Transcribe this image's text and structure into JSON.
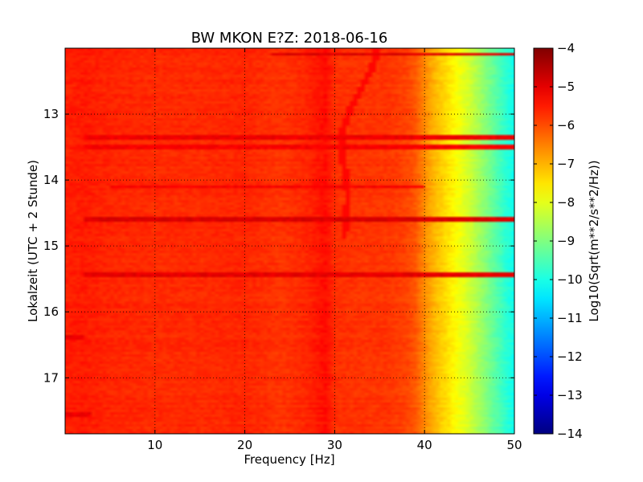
{
  "chart_data": {
    "type": "heatmap",
    "title": "BW MKON E?Z: 2018-06-16",
    "xlabel": "Frequency [Hz]",
    "ylabel": "Lokalzeit (UTC + 2 Stunde)",
    "xlim": [
      0,
      50
    ],
    "ylim_top": 12.0,
    "ylim_bottom": 17.85,
    "y_inverted": true,
    "x_ticks": [
      10,
      20,
      30,
      40,
      50
    ],
    "y_ticks": [
      13,
      14,
      15,
      16,
      17
    ],
    "grid": true,
    "colormap": "jet",
    "colorbar": {
      "label": "Log10(Sqrt(m**2/s**2/Hz))",
      "min": -14,
      "max": -4,
      "ticks": [
        -4,
        -5,
        -6,
        -7,
        -8,
        -9,
        -10,
        -11,
        -12,
        -13,
        -14
      ]
    },
    "spectrum_profile": {
      "freq_hz": [
        0,
        2,
        5,
        10,
        15,
        20,
        24,
        27,
        29,
        30,
        33,
        36,
        38,
        39,
        40,
        41,
        42,
        43,
        44,
        45,
        46,
        47,
        48,
        49,
        50
      ],
      "log10_psd": [
        -5.55,
        -5.5,
        -5.6,
        -5.65,
        -5.65,
        -5.6,
        -5.75,
        -5.6,
        -5.35,
        -5.7,
        -5.75,
        -5.75,
        -5.9,
        -6.1,
        -6.6,
        -7.0,
        -7.3,
        -7.6,
        -7.9,
        -8.2,
        -8.6,
        -9.0,
        -9.4,
        -9.8,
        -10.1
      ]
    },
    "time_bands": [
      {
        "time_h": 12.09,
        "f_from": 23,
        "f_to": 50,
        "log10_psd": -4.9
      },
      {
        "time_h": 13.35,
        "f_from": 2,
        "f_to": 50,
        "log10_psd": -5.1
      },
      {
        "time_h": 13.5,
        "f_from": 2,
        "f_to": 50,
        "log10_psd": -5.2
      },
      {
        "time_h": 14.1,
        "f_from": 5,
        "f_to": 40,
        "log10_psd": -5.2
      },
      {
        "time_h": 14.6,
        "f_from": 2,
        "f_to": 50,
        "log10_psd": -4.9
      },
      {
        "time_h": 15.45,
        "f_from": 2,
        "f_to": 50,
        "log10_psd": -5.0
      },
      {
        "time_h": 16.4,
        "f_from": 0,
        "f_to": 2,
        "log10_psd": -5.1
      },
      {
        "time_h": 17.55,
        "f_from": 0,
        "f_to": 3,
        "log10_psd": -5.1
      }
    ],
    "drifting_line": {
      "time_h": [
        12.0,
        12.3,
        12.6,
        12.9,
        13.2,
        13.6,
        14.0,
        14.3,
        14.6,
        14.9
      ],
      "freq_hz": [
        34.7,
        34.2,
        33.0,
        31.8,
        31.0,
        30.8,
        31.3,
        31.5,
        31.2,
        31.0
      ]
    }
  }
}
